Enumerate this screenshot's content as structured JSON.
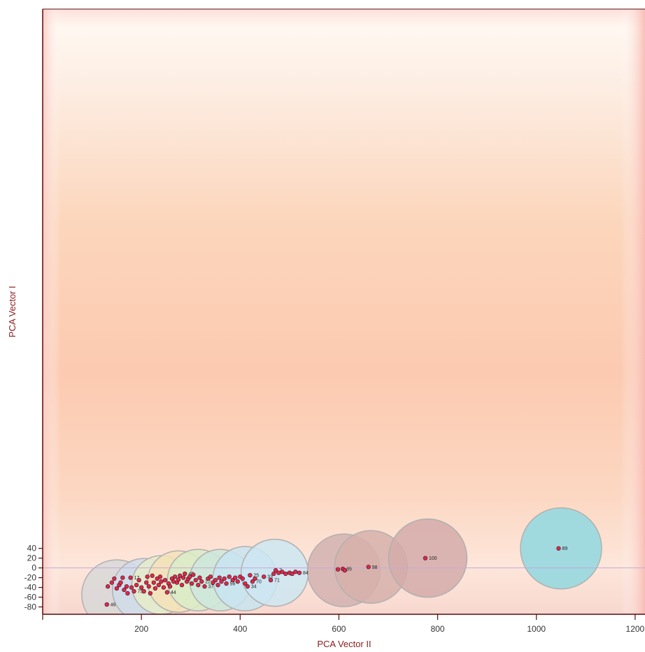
{
  "chart_data": {
    "type": "scatter",
    "title": "",
    "xlabel": "PCA Vector II",
    "ylabel": "PCA Vector I",
    "xlim": [
      0,
      1220
    ],
    "ylim": [
      -95,
      1145
    ],
    "xticks": [
      200,
      400,
      600,
      800,
      1000,
      1200
    ],
    "yticks": [
      40,
      20,
      0,
      -20,
      -40,
      -60,
      -80
    ],
    "grid": false,
    "legend": "none",
    "colors": {
      "point_fill": "#e8283c",
      "point_stroke": "#3a1a4a",
      "axis": "#5a0a0a",
      "zero_line": "#c8a8d8",
      "bubble_stroke": "#b0b0b0",
      "background_mid": "#fdd3b8",
      "background_top": "#fff3ea"
    },
    "points": [
      {
        "x": 130,
        "y": -75,
        "label": "46"
      },
      {
        "x": 132,
        "y": -38,
        "label": ""
      },
      {
        "x": 140,
        "y": -30,
        "label": ""
      },
      {
        "x": 145,
        "y": -22,
        "label": ""
      },
      {
        "x": 150,
        "y": -42,
        "label": ""
      },
      {
        "x": 155,
        "y": -35,
        "label": ""
      },
      {
        "x": 158,
        "y": -30,
        "label": ""
      },
      {
        "x": 162,
        "y": -20,
        "label": ""
      },
      {
        "x": 165,
        "y": -45,
        "label": ""
      },
      {
        "x": 170,
        "y": -38,
        "label": ""
      },
      {
        "x": 172,
        "y": -52,
        "label": ""
      },
      {
        "x": 178,
        "y": -20,
        "label": "17"
      },
      {
        "x": 180,
        "y": -40,
        "label": ""
      },
      {
        "x": 185,
        "y": -48,
        "label": "75"
      },
      {
        "x": 190,
        "y": -35,
        "label": ""
      },
      {
        "x": 195,
        "y": -25,
        "label": ""
      },
      {
        "x": 200,
        "y": -40,
        "label": ""
      },
      {
        "x": 205,
        "y": -48,
        "label": ""
      },
      {
        "x": 210,
        "y": -30,
        "label": ""
      },
      {
        "x": 212,
        "y": -18,
        "label": ""
      },
      {
        "x": 215,
        "y": -38,
        "label": ""
      },
      {
        "x": 218,
        "y": -52,
        "label": ""
      },
      {
        "x": 222,
        "y": -16,
        "label": ""
      },
      {
        "x": 225,
        "y": -30,
        "label": ""
      },
      {
        "x": 228,
        "y": -42,
        "label": ""
      },
      {
        "x": 232,
        "y": -22,
        "label": ""
      },
      {
        "x": 235,
        "y": -35,
        "label": ""
      },
      {
        "x": 238,
        "y": -18,
        "label": ""
      },
      {
        "x": 240,
        "y": -28,
        "label": ""
      },
      {
        "x": 245,
        "y": -40,
        "label": ""
      },
      {
        "x": 248,
        "y": -25,
        "label": ""
      },
      {
        "x": 252,
        "y": -50,
        "label": "44"
      },
      {
        "x": 255,
        "y": -32,
        "label": ""
      },
      {
        "x": 258,
        "y": -38,
        "label": ""
      },
      {
        "x": 262,
        "y": -22,
        "label": ""
      },
      {
        "x": 265,
        "y": -28,
        "label": ""
      },
      {
        "x": 268,
        "y": -18,
        "label": ""
      },
      {
        "x": 272,
        "y": -30,
        "label": ""
      },
      {
        "x": 275,
        "y": -24,
        "label": ""
      },
      {
        "x": 278,
        "y": -16,
        "label": ""
      },
      {
        "x": 282,
        "y": -35,
        "label": ""
      },
      {
        "x": 285,
        "y": -20,
        "label": ""
      },
      {
        "x": 288,
        "y": -12,
        "label": "45"
      },
      {
        "x": 292,
        "y": -28,
        "label": ""
      },
      {
        "x": 295,
        "y": -22,
        "label": ""
      },
      {
        "x": 298,
        "y": -18,
        "label": ""
      },
      {
        "x": 302,
        "y": -32,
        "label": ""
      },
      {
        "x": 305,
        "y": -14,
        "label": ""
      },
      {
        "x": 310,
        "y": -25,
        "label": ""
      },
      {
        "x": 315,
        "y": -35,
        "label": ""
      },
      {
        "x": 318,
        "y": -20,
        "label": ""
      },
      {
        "x": 322,
        "y": -28,
        "label": "22"
      },
      {
        "x": 328,
        "y": -38,
        "label": "37"
      },
      {
        "x": 335,
        "y": -22,
        "label": ""
      },
      {
        "x": 340,
        "y": -18,
        "label": ""
      },
      {
        "x": 345,
        "y": -30,
        "label": ""
      },
      {
        "x": 350,
        "y": -25,
        "label": ""
      },
      {
        "x": 355,
        "y": -35,
        "label": ""
      },
      {
        "x": 358,
        "y": -20,
        "label": ""
      },
      {
        "x": 362,
        "y": -28,
        "label": ""
      },
      {
        "x": 368,
        "y": -22,
        "label": ""
      },
      {
        "x": 372,
        "y": -32,
        "label": "56"
      },
      {
        "x": 378,
        "y": -18,
        "label": ""
      },
      {
        "x": 385,
        "y": -25,
        "label": ""
      },
      {
        "x": 390,
        "y": -20,
        "label": ""
      },
      {
        "x": 395,
        "y": -28,
        "label": ""
      },
      {
        "x": 400,
        "y": -18,
        "label": ""
      },
      {
        "x": 405,
        "y": -22,
        "label": ""
      },
      {
        "x": 410,
        "y": -32,
        "label": ""
      },
      {
        "x": 415,
        "y": -38,
        "label": "34"
      },
      {
        "x": 420,
        "y": -15,
        "label": "25"
      },
      {
        "x": 425,
        "y": -28,
        "label": "70"
      },
      {
        "x": 430,
        "y": -22,
        "label": ""
      },
      {
        "x": 448,
        "y": -18,
        "label": "33"
      },
      {
        "x": 462,
        "y": -25,
        "label": "71"
      },
      {
        "x": 468,
        "y": -12,
        "label": ""
      },
      {
        "x": 472,
        "y": -5,
        "label": "7"
      },
      {
        "x": 478,
        "y": -10,
        "label": ""
      },
      {
        "x": 485,
        "y": -8,
        "label": ""
      },
      {
        "x": 492,
        "y": -12,
        "label": "72"
      },
      {
        "x": 500,
        "y": -10,
        "label": ""
      },
      {
        "x": 505,
        "y": -12,
        "label": ""
      },
      {
        "x": 512,
        "y": -8,
        "label": ""
      },
      {
        "x": 520,
        "y": -10,
        "label": "84"
      },
      {
        "x": 598,
        "y": -3,
        "label": ""
      },
      {
        "x": 608,
        "y": -2,
        "label": "85"
      },
      {
        "x": 612,
        "y": -5,
        "label": ""
      },
      {
        "x": 660,
        "y": 2,
        "label": "98"
      },
      {
        "x": 775,
        "y": 20,
        "label": "100"
      },
      {
        "x": 1045,
        "y": 40,
        "label": "89"
      }
    ],
    "bubbles": [
      {
        "x": 150,
        "y": -55,
        "r": 50,
        "color": "#d8d8d8"
      },
      {
        "x": 205,
        "y": -45,
        "r": 45,
        "color": "#d0dcea"
      },
      {
        "x": 240,
        "y": -35,
        "r": 42,
        "color": "#e6ecc8"
      },
      {
        "x": 275,
        "y": -28,
        "r": 44,
        "color": "#f4e2b8"
      },
      {
        "x": 315,
        "y": -25,
        "r": 44,
        "color": "#d8ecc8"
      },
      {
        "x": 360,
        "y": -25,
        "r": 44,
        "color": "#cce8dc"
      },
      {
        "x": 410,
        "y": -22,
        "r": 46,
        "color": "#c8e4f0"
      },
      {
        "x": 470,
        "y": -10,
        "r": 48,
        "color": "#cce6f2"
      },
      {
        "x": 610,
        "y": -5,
        "r": 52,
        "color": "#d2b2b0"
      },
      {
        "x": 665,
        "y": 2,
        "r": 52,
        "color": "#d6b0ac"
      },
      {
        "x": 780,
        "y": 20,
        "r": 56,
        "color": "#d4acaa"
      },
      {
        "x": 1050,
        "y": 40,
        "r": 58,
        "color": "#8fd8e0"
      }
    ]
  }
}
